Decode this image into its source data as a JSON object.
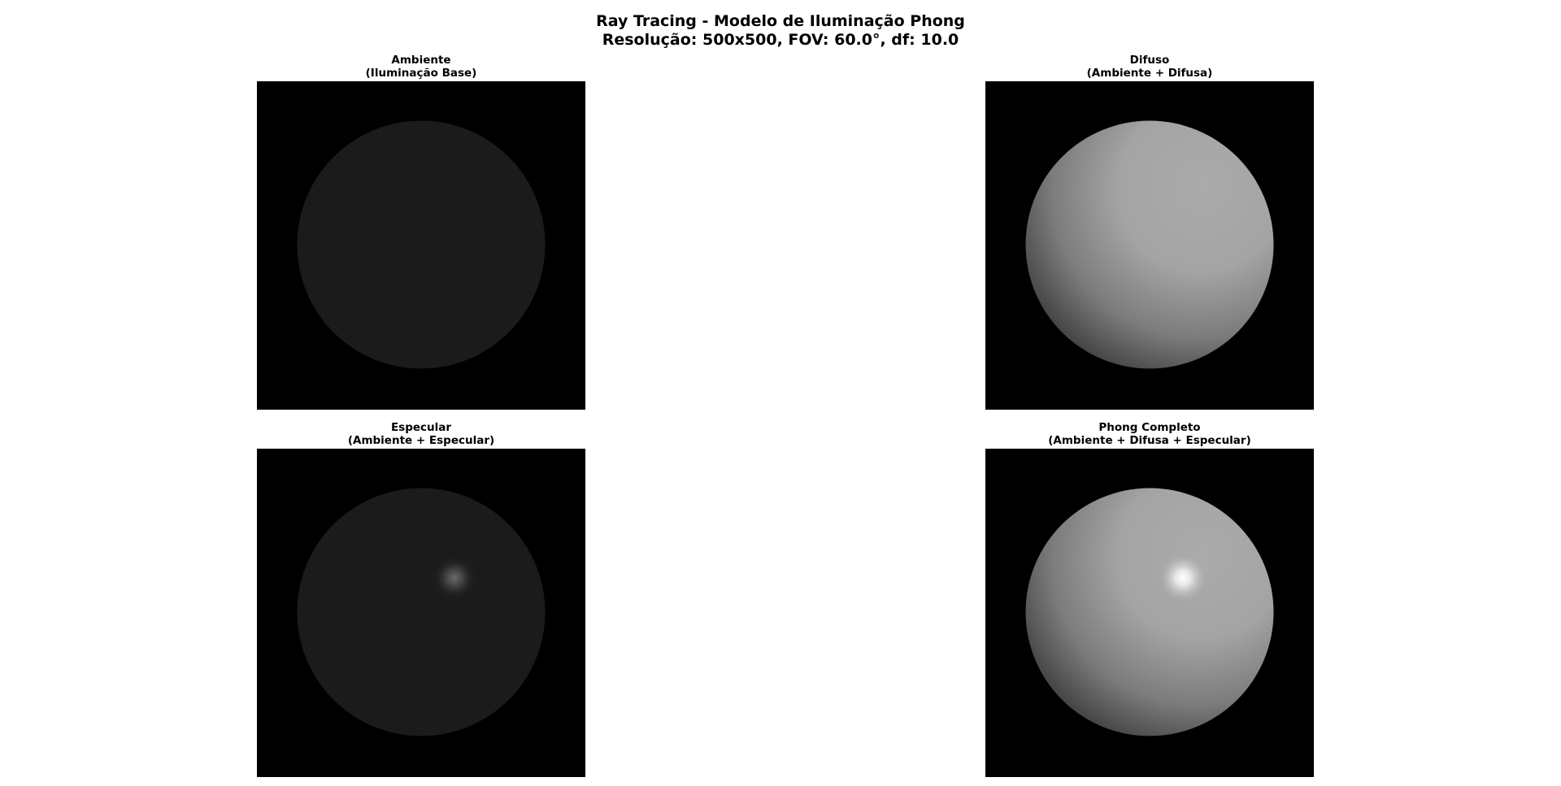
{
  "figure": {
    "title_line1": "Ray Tracing - Modelo de Iluminação Phong",
    "title_line2": "Resolução: 500x500, FOV: 60.0°, df: 10.0"
  },
  "panels": [
    {
      "key": "ambient",
      "title_line1": "Ambiente",
      "title_line2": "(Iluminação Base)",
      "components": {
        "ambient": true,
        "diffuse": false,
        "specular": false
      }
    },
    {
      "key": "diffuse",
      "title_line1": "Difuso",
      "title_line2": "(Ambiente + Difusa)",
      "components": {
        "ambient": true,
        "diffuse": true,
        "specular": false
      }
    },
    {
      "key": "specular",
      "title_line1": "Especular",
      "title_line2": "(Ambiente + Especular)",
      "components": {
        "ambient": true,
        "diffuse": false,
        "specular": true
      }
    },
    {
      "key": "phong",
      "title_line1": "Phong Completo",
      "title_line2": "(Ambiente + Difusa + Especular)",
      "components": {
        "ambient": true,
        "diffuse": true,
        "specular": true
      }
    }
  ],
  "colors": {
    "background": "#000000",
    "ambient_sphere": "#1b1b1b",
    "diffuse_light": "#ababab",
    "specular_highlight": "#ffffff"
  }
}
